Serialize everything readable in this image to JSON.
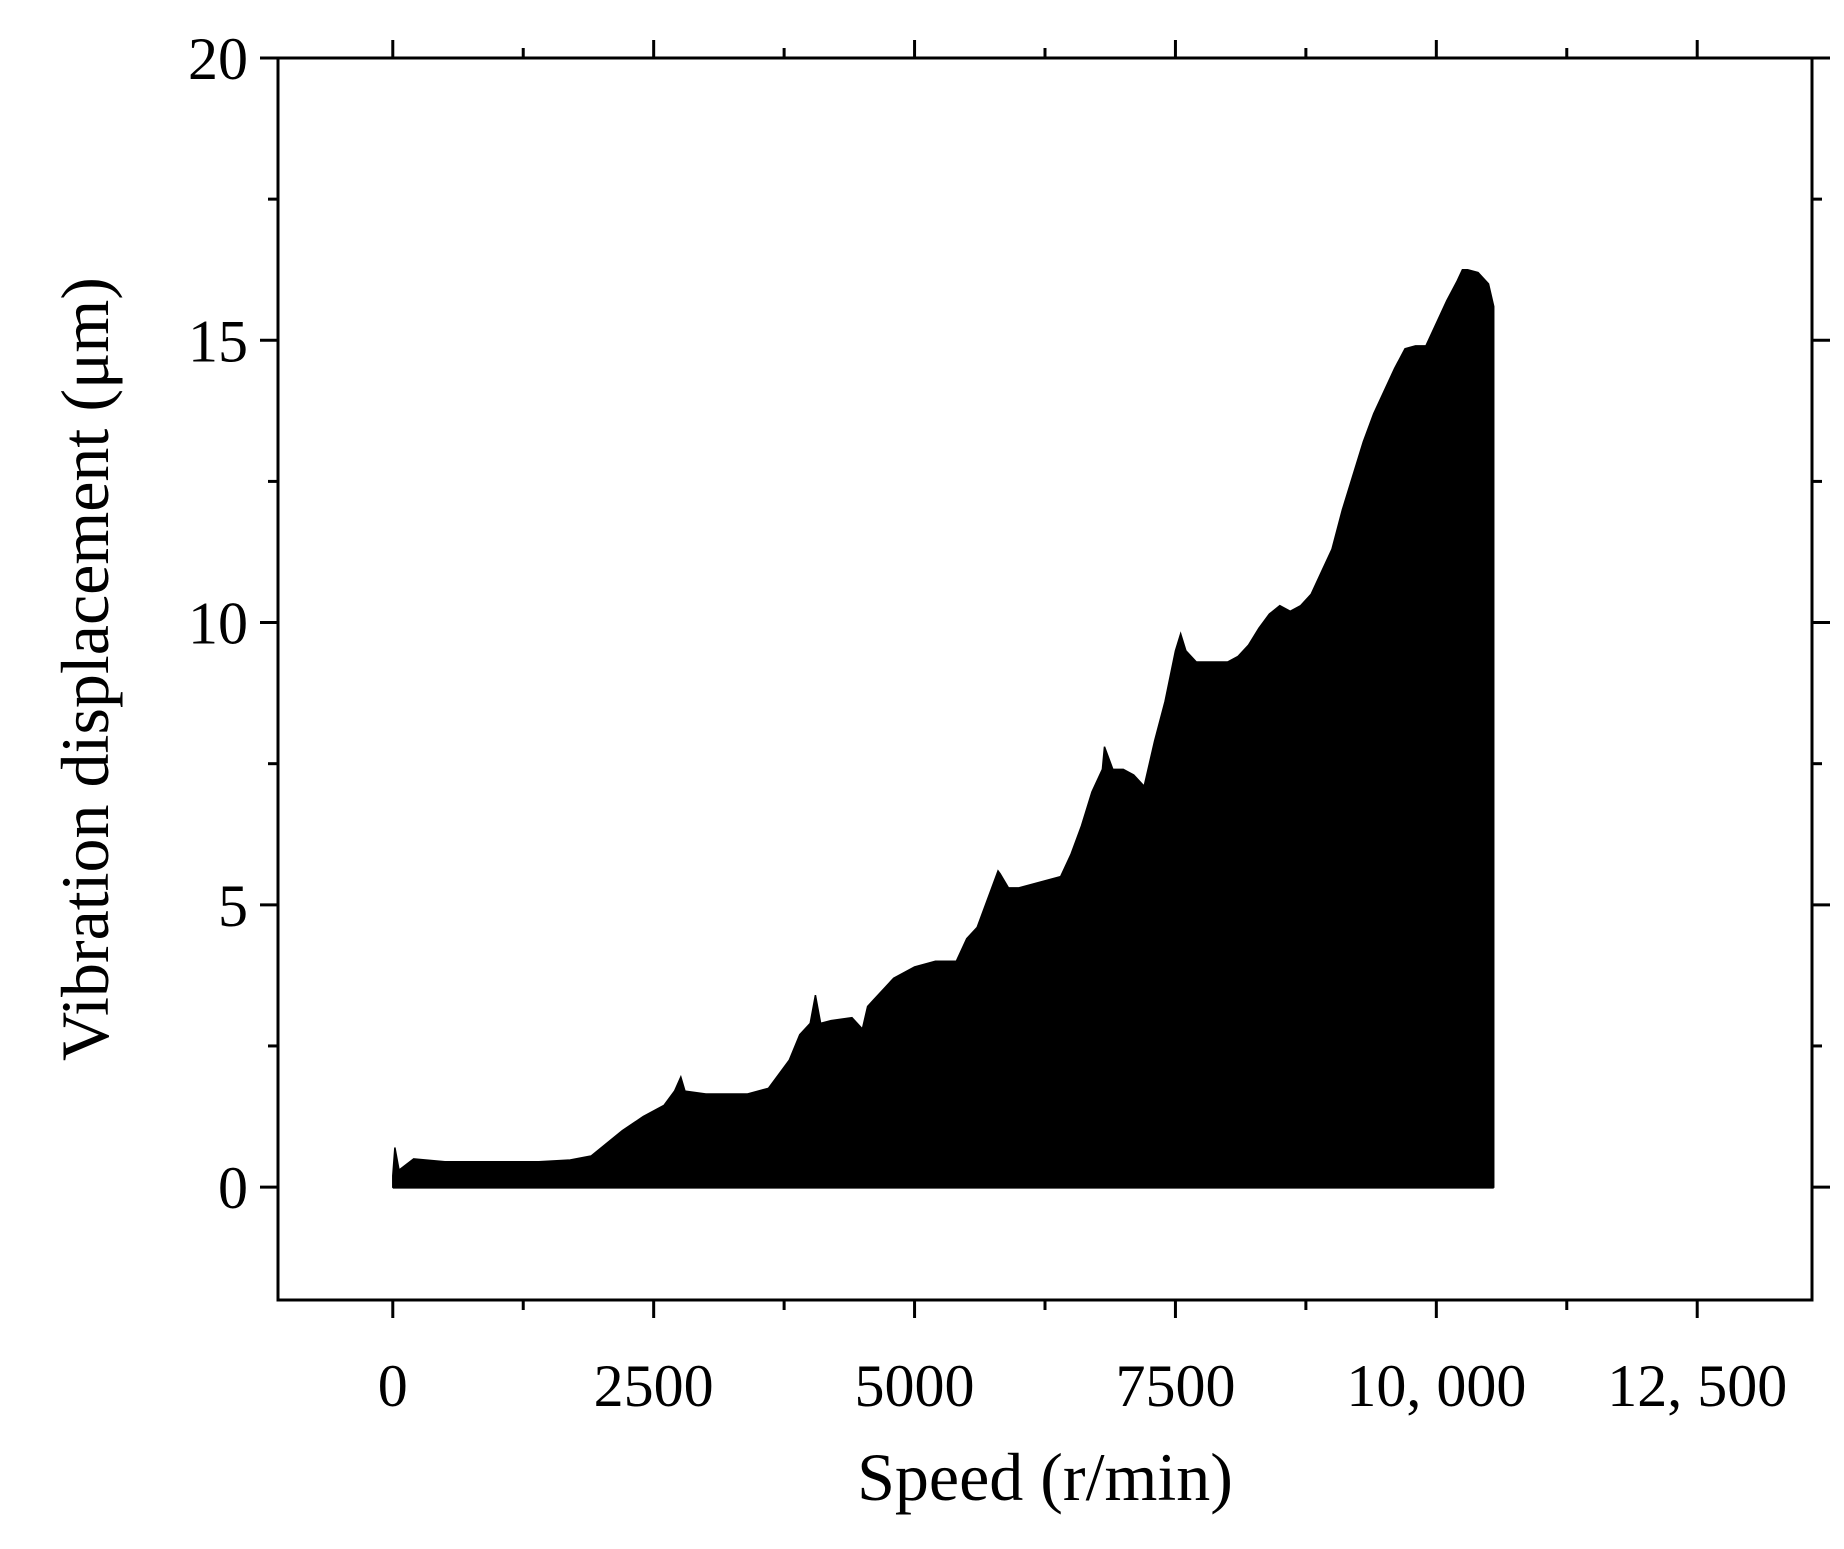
{
  "chart_data": {
    "type": "area",
    "title": "",
    "xlabel": "Speed (r/min)",
    "ylabel": "Vibration displacement (μm)",
    "xlim": [
      -1100,
      13600
    ],
    "ylim": [
      -2,
      20
    ],
    "x_ticks": [
      0,
      2500,
      5000,
      7500,
      10000,
      12500
    ],
    "x_tick_labels": [
      "0",
      "2500",
      "5000",
      "7500",
      "10, 000",
      "12, 500"
    ],
    "y_ticks": [
      0,
      5,
      10,
      15,
      20
    ],
    "y_tick_labels": [
      "0",
      "5",
      "10",
      "15",
      "20"
    ],
    "grid": false,
    "colors": {
      "fill": "#000000",
      "axis": "#000000",
      "background": "#ffffff"
    },
    "series": [
      {
        "x": [
          0,
          20,
          60,
          200,
          500,
          800,
          1100,
          1400,
          1700,
          1900,
          2000,
          2200,
          2400,
          2600,
          2700,
          2760,
          2800,
          3000,
          3200,
          3400,
          3600,
          3700,
          3800,
          3900,
          4000,
          4050,
          4100,
          4200,
          4400,
          4500,
          4550,
          4600,
          4800,
          5000,
          5200,
          5400,
          5500,
          5600,
          5700,
          5800,
          5820,
          5900,
          6000,
          6200,
          6400,
          6500,
          6600,
          6700,
          6800,
          6820,
          6900,
          7000,
          7100,
          7200,
          7300,
          7400,
          7500,
          7550,
          7600,
          7700,
          7800,
          7900,
          8000,
          8100,
          8200,
          8300,
          8400,
          8500,
          8600,
          8700,
          8800,
          8900,
          9000,
          9100,
          9200,
          9300,
          9400,
          9500,
          9600,
          9700,
          9800,
          9900,
          10000,
          10100,
          10200,
          10250,
          10300,
          10400,
          10500,
          10550
        ],
        "y_max": [
          0.2,
          0.7,
          0.3,
          0.5,
          0.45,
          0.45,
          0.45,
          0.45,
          0.48,
          0.55,
          0.7,
          1.0,
          1.25,
          1.45,
          1.7,
          1.95,
          1.7,
          1.65,
          1.65,
          1.65,
          1.75,
          2.0,
          2.25,
          2.7,
          2.9,
          3.4,
          2.9,
          2.95,
          3.0,
          2.8,
          3.2,
          3.3,
          3.7,
          3.9,
          4.0,
          4.0,
          4.4,
          4.6,
          5.1,
          5.6,
          5.55,
          5.3,
          5.3,
          5.4,
          5.5,
          5.9,
          6.4,
          7.0,
          7.4,
          7.8,
          7.4,
          7.4,
          7.3,
          7.1,
          7.9,
          8.6,
          9.5,
          9.8,
          9.5,
          9.3,
          9.3,
          9.3,
          9.3,
          9.4,
          9.6,
          9.9,
          10.15,
          10.3,
          10.2,
          10.3,
          10.5,
          10.9,
          11.3,
          12.0,
          12.6,
          13.2,
          13.7,
          14.1,
          14.5,
          14.85,
          14.9,
          14.9,
          15.3,
          15.7,
          16.05,
          16.25,
          16.25,
          16.2,
          16.0,
          15.6
        ]
      }
    ]
  }
}
